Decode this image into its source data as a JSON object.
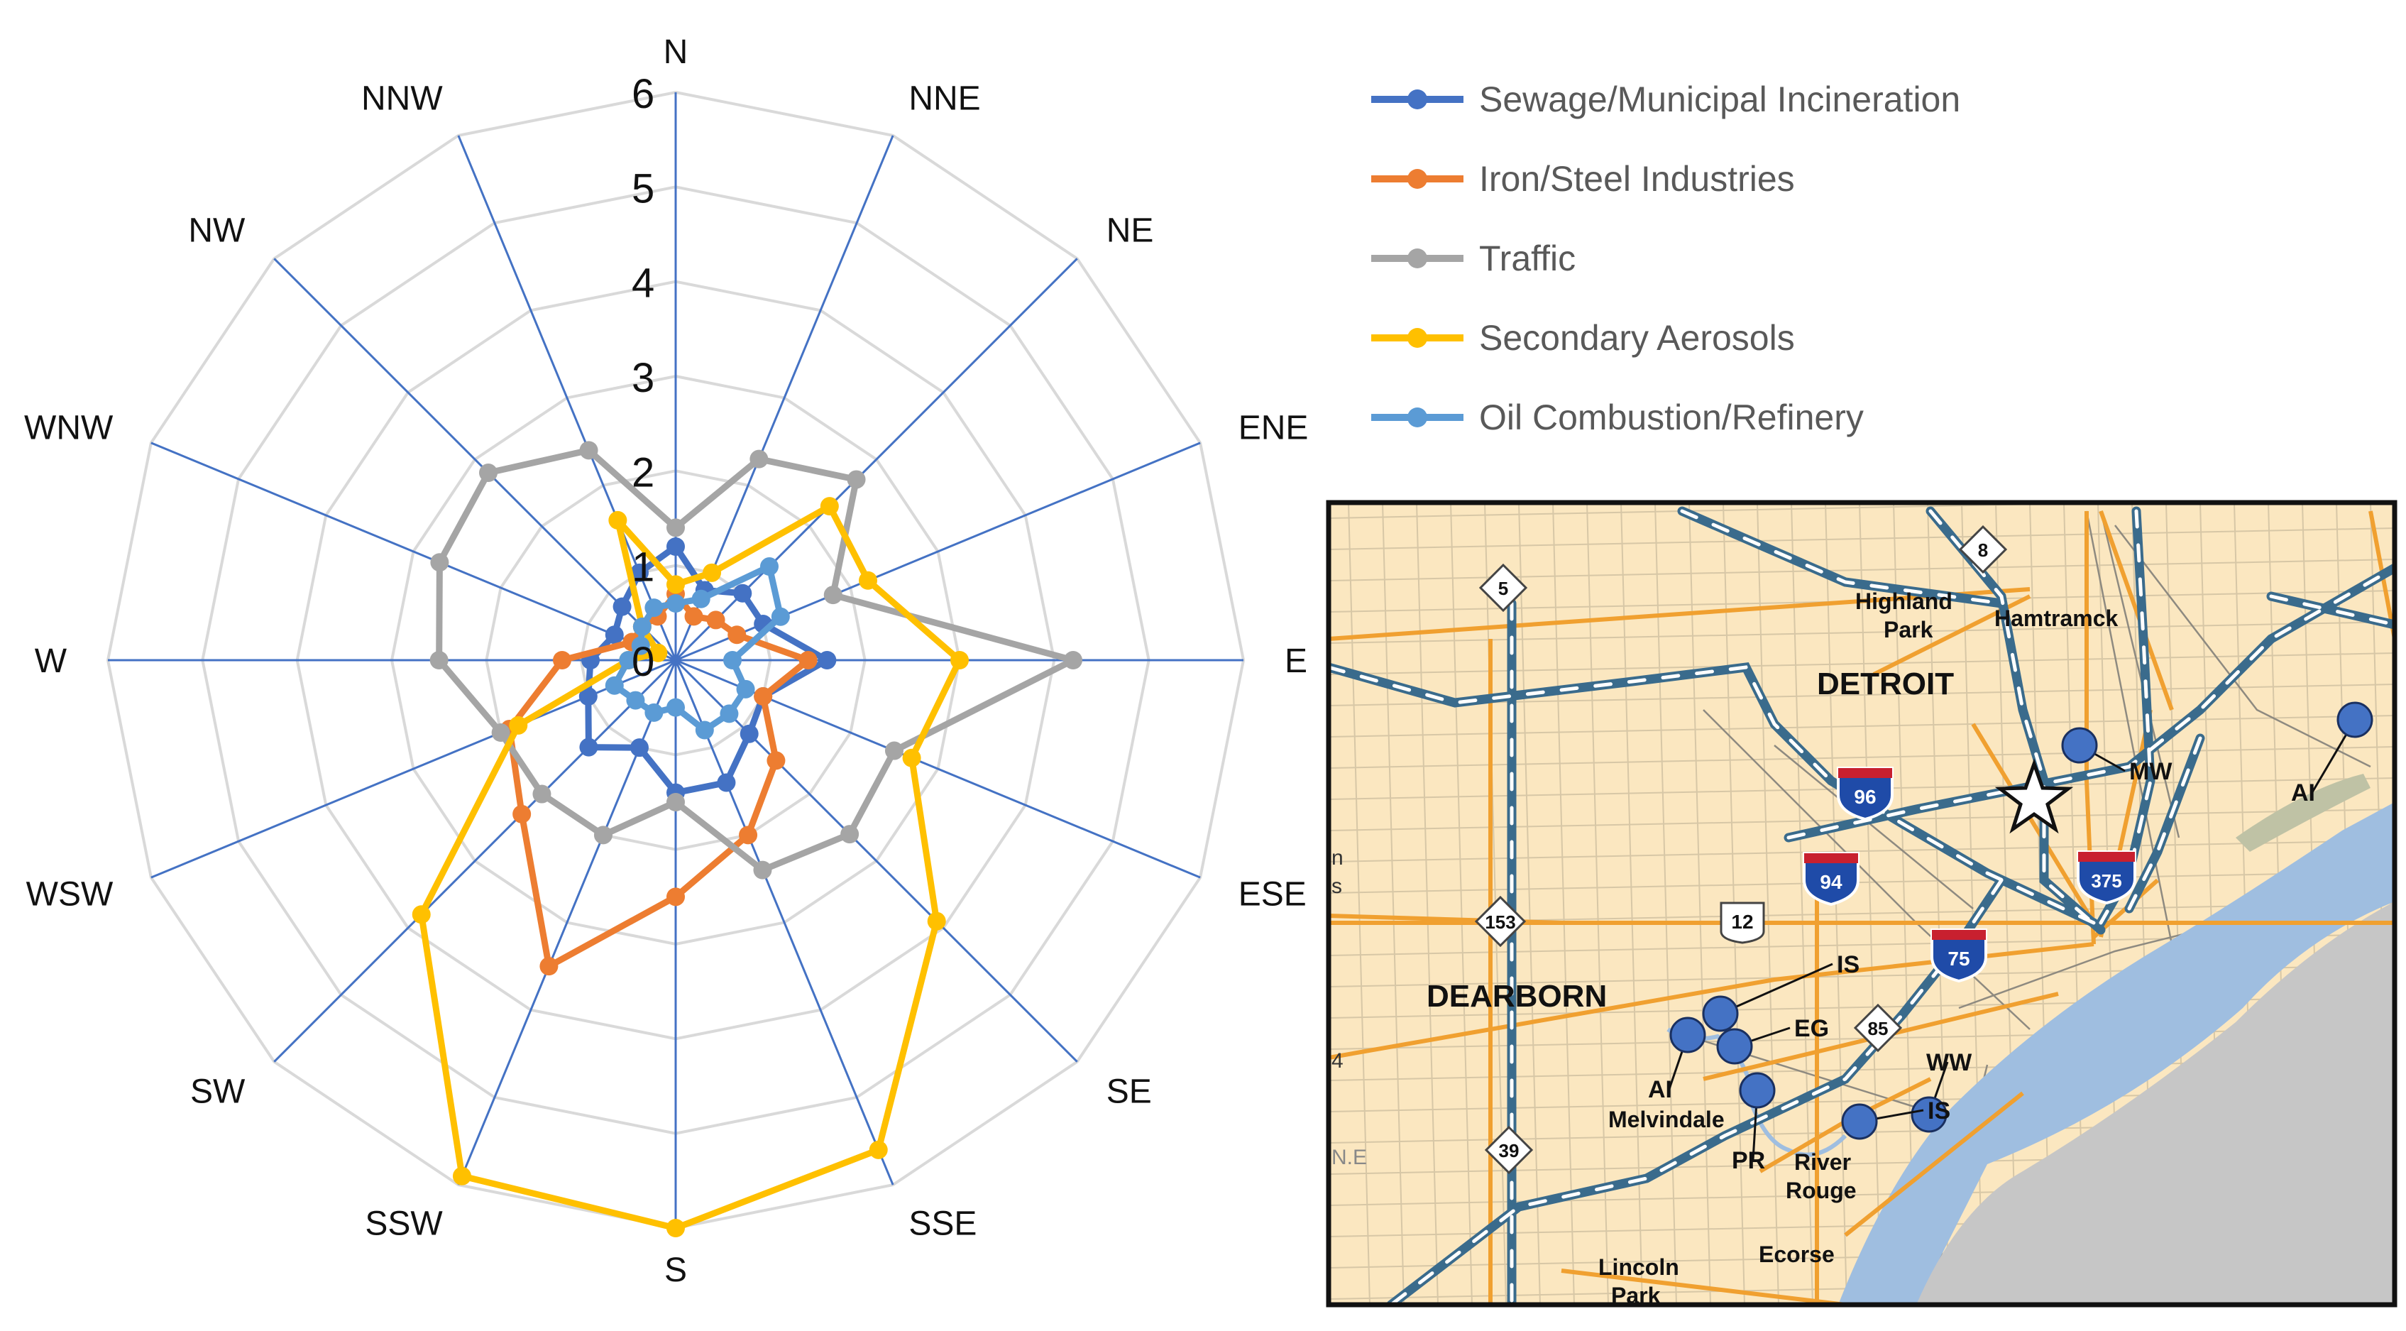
{
  "chart_data": {
    "type": "radar",
    "title": "",
    "directions": [
      "N",
      "NNE",
      "NE",
      "ENE",
      "E",
      "ESE",
      "SE",
      "SSE",
      "S",
      "SSW",
      "SW",
      "WSW",
      "W",
      "WNW",
      "NW",
      "NNW"
    ],
    "rlim": [
      0,
      6
    ],
    "ticks": [
      "0",
      "1",
      "2",
      "3",
      "4",
      "5",
      "6"
    ],
    "grid": true,
    "legend_position": "top-right",
    "series": [
      {
        "name": "Sewage/Municipal Incineration",
        "color": "#4472C4",
        "values": [
          1.2,
          0.8,
          1.0,
          1.0,
          1.6,
          1.0,
          1.1,
          1.4,
          1.4,
          1.0,
          1.3,
          1.0,
          0.9,
          0.7,
          0.8,
          1.0
        ]
      },
      {
        "name": "Iron/Steel Industries",
        "color": "#ED7D31",
        "values": [
          0.7,
          0.5,
          0.6,
          0.7,
          1.4,
          1.0,
          1.5,
          2.0,
          2.5,
          3.5,
          2.3,
          1.9,
          1.2,
          0.5,
          0.5,
          0.5
        ]
      },
      {
        "name": "Traffic",
        "color": "#A5A5A5",
        "values": [
          1.4,
          2.3,
          2.7,
          1.8,
          4.2,
          2.5,
          2.6,
          2.4,
          1.5,
          2.0,
          2.0,
          2.0,
          2.5,
          2.7,
          2.8,
          2.4
        ]
      },
      {
        "name": "Secondary Aerosols",
        "color": "#FFC000",
        "values": [
          0.8,
          1.0,
          2.3,
          2.2,
          3.0,
          2.7,
          3.9,
          5.6,
          6.0,
          5.9,
          3.8,
          1.8,
          0.5,
          0.2,
          0.5,
          1.6
        ]
      },
      {
        "name": "Oil Combustion/Refinery",
        "color": "#5B9BD5",
        "values": [
          0.6,
          0.7,
          1.4,
          1.2,
          0.6,
          0.8,
          0.8,
          0.8,
          0.5,
          0.6,
          0.6,
          0.7,
          0.5,
          0.4,
          0.5,
          0.6
        ]
      }
    ]
  },
  "map": {
    "cities": [
      "DETROIT",
      "DEARBORN",
      "Highland",
      "Park",
      "Hamtramck",
      "Melvindale",
      "River",
      "Rouge",
      "Ecorse",
      "Lincoln",
      "Park"
    ],
    "site_labels": [
      "MW",
      "AI",
      "IS",
      "EG",
      "WW",
      "AI",
      "IS",
      "PR"
    ],
    "route_shields": [
      "96",
      "94",
      "75",
      "375",
      "12",
      "153",
      "85",
      "39",
      "5",
      "8"
    ],
    "edge_text": [
      "n",
      "s",
      "4",
      "N.E"
    ]
  }
}
